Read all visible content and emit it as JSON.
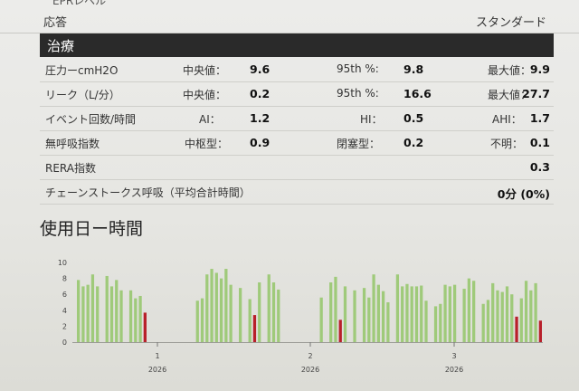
{
  "top": {
    "label_cut": "EPRレベル",
    "answer_label": "応答",
    "answer_value": "スタンダード"
  },
  "section": {
    "title": "治療"
  },
  "rows": [
    {
      "label": "圧力ーcmH2O",
      "l1": "中央値：",
      "v1": "9.6",
      "l2": "95th %:",
      "v2": "9.8",
      "l3": "最大値：",
      "v3": "9.9"
    },
    {
      "label": "リーク（L/分）",
      "l1": "中央値：",
      "v1": "0.2",
      "l2": "95th %:",
      "v2": "16.6",
      "l3": "最大値：",
      "v3": "27.7"
    },
    {
      "label": "イベント回数/時間",
      "l1": "AI：",
      "v1": "1.2",
      "l2": "HI：",
      "v2": "0.5",
      "l3": "AHI：",
      "v3": "1.7"
    },
    {
      "label": "無呼吸指数",
      "l1": "中枢型：",
      "v1": "0.9",
      "l2": "閉塞型：",
      "v2": "0.2",
      "l3": "不明：",
      "v3": "0.1"
    },
    {
      "label": "RERA指数",
      "v3": "0.3"
    },
    {
      "label": "チェーンストークス呼吸（平均合計時間）",
      "v3": "0分 (0%)"
    }
  ],
  "usage": {
    "title": "使用日ー時間"
  },
  "chart_data": {
    "type": "bar",
    "title": "使用日ー時間",
    "ylim": [
      0,
      10
    ],
    "yticks": [
      "0",
      "2",
      "4",
      "6",
      "8",
      "10"
    ],
    "xticks": [
      {
        "label": "1",
        "year": "2026"
      },
      {
        "label": "2",
        "year": "2026"
      },
      {
        "label": "3",
        "year": "2026"
      }
    ],
    "colors": {
      "normal": "#9fca7a",
      "short": "#b8202a"
    },
    "values": [
      7.8,
      7,
      7.2,
      8.5,
      7,
      0,
      8.3,
      7,
      7.8,
      6.5,
      0,
      6.5,
      5.5,
      5.8,
      3.7,
      0,
      0,
      0,
      0,
      0,
      0,
      0,
      0,
      0,
      0,
      5.2,
      5.5,
      8.5,
      9.2,
      8.7,
      8,
      9.2,
      7.2,
      0,
      6.8,
      0,
      5.4,
      3.4,
      7.5,
      0,
      8.5,
      7.5,
      6.6,
      0,
      0,
      0,
      0,
      0,
      0,
      0,
      0,
      5.6,
      0,
      7.5,
      8.2,
      2.8,
      7,
      0,
      6.5,
      0,
      6.8,
      5.6,
      8.5,
      7.2,
      6.4,
      5,
      0,
      8.5,
      7,
      7.3,
      7,
      7,
      7.1,
      5.2,
      0,
      4.5,
      4.8,
      7.2,
      7,
      7.2,
      0,
      6.7,
      8,
      7.7,
      0,
      4.8,
      5.3,
      7.4,
      6.5,
      6.3,
      7,
      6,
      3.2,
      5.5,
      7.7,
      6.5,
      7.4,
      2.7
    ],
    "short_indices": [
      14,
      37,
      55,
      92,
      97
    ]
  }
}
